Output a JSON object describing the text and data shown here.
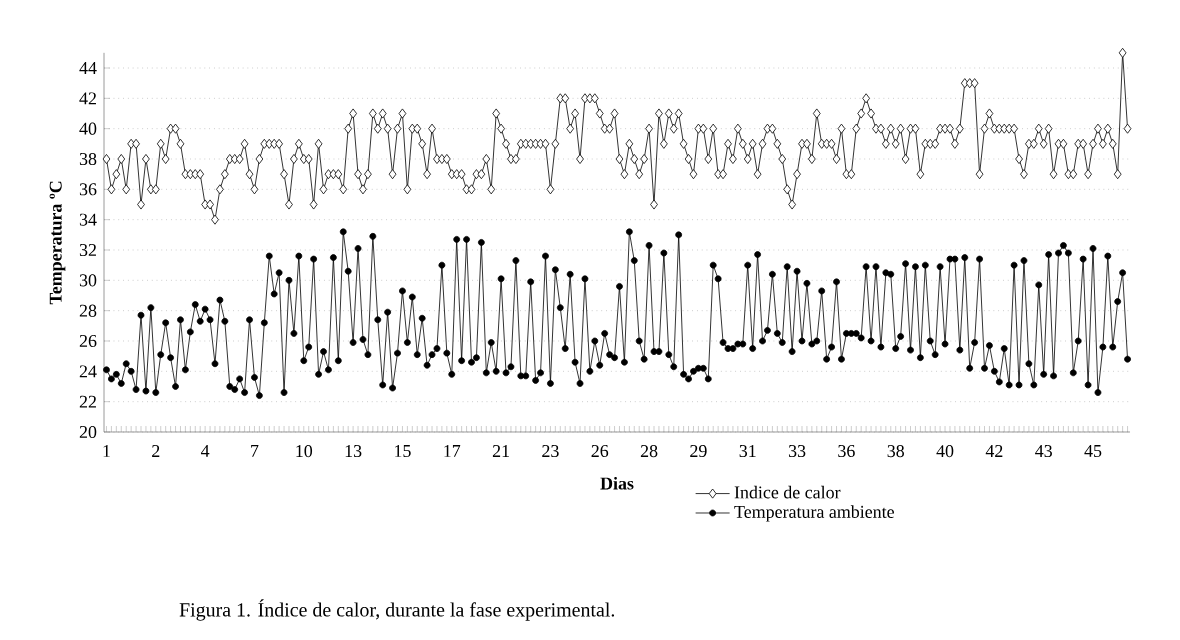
{
  "chart_data": {
    "type": "line",
    "xlabel": "Dias",
    "ylabel": "Temperatura ºC",
    "annotations": [
      "Figura 1. Índice de calor, durante la fase experimental."
    ],
    "categories": [
      "1",
      null,
      null,
      null,
      null,
      null,
      null,
      null,
      null,
      null,
      "2",
      null,
      null,
      null,
      null,
      null,
      null,
      null,
      null,
      null,
      "4",
      null,
      null,
      null,
      null,
      null,
      null,
      null,
      null,
      null,
      "7",
      null,
      null,
      null,
      null,
      null,
      null,
      null,
      null,
      null,
      "10",
      null,
      null,
      null,
      null,
      null,
      null,
      null,
      null,
      null,
      "13",
      null,
      null,
      null,
      null,
      null,
      null,
      null,
      null,
      null,
      "15",
      null,
      null,
      null,
      null,
      null,
      null,
      null,
      null,
      null,
      "17",
      null,
      null,
      null,
      null,
      null,
      null,
      null,
      null,
      null,
      "21",
      null,
      null,
      null,
      null,
      null,
      null,
      null,
      null,
      null,
      "23",
      null,
      null,
      null,
      null,
      null,
      null,
      null,
      null,
      null,
      "26",
      null,
      null,
      null,
      null,
      null,
      null,
      null,
      null,
      null,
      "28",
      null,
      null,
      null,
      null,
      null,
      null,
      null,
      null,
      null,
      "29",
      null,
      null,
      null,
      null,
      null,
      null,
      null,
      null,
      null,
      "31",
      null,
      null,
      null,
      null,
      null,
      null,
      null,
      null,
      null,
      "33",
      null,
      null,
      null,
      null,
      null,
      null,
      null,
      null,
      null,
      "36",
      null,
      null,
      null,
      null,
      null,
      null,
      null,
      null,
      null,
      "38",
      null,
      null,
      null,
      null,
      null,
      null,
      null,
      null,
      null,
      "40",
      null,
      null,
      null,
      null,
      null,
      null,
      null,
      null,
      null,
      "42",
      null,
      null,
      null,
      null,
      null,
      null,
      null,
      null,
      null,
      "43",
      null,
      null,
      null,
      null,
      null,
      null,
      null,
      null,
      null,
      "45",
      null,
      null,
      null,
      null,
      null,
      null,
      null
    ],
    "series": [
      {
        "name": "Indice de calor",
        "color": "#000000",
        "marker": "diamond",
        "values": [
          38,
          36,
          37,
          38,
          36,
          39,
          39,
          35,
          38,
          36,
          36,
          39,
          38,
          40,
          40,
          39,
          37,
          37,
          37,
          37,
          35,
          35,
          34,
          36,
          37,
          38,
          38,
          38,
          39,
          37,
          36,
          38,
          39,
          39,
          39,
          39,
          37,
          35,
          38,
          39,
          38,
          38,
          35,
          39,
          36,
          37,
          37,
          37,
          36,
          40,
          41,
          37,
          36,
          37,
          41,
          40,
          41,
          40,
          37,
          40,
          41,
          36,
          40,
          40,
          39,
          37,
          40,
          38,
          38,
          38,
          37,
          37,
          37,
          36,
          36,
          37,
          37,
          38,
          36,
          41,
          40,
          39,
          38,
          38,
          39,
          39,
          39,
          39,
          39,
          39,
          36,
          39,
          42,
          42,
          40,
          41,
          38,
          42,
          42,
          42,
          41,
          40,
          40,
          41,
          38,
          37,
          39,
          38,
          37,
          38,
          40,
          35,
          41,
          39,
          41,
          40,
          41,
          39,
          38,
          37,
          40,
          40,
          38,
          40,
          37,
          37,
          39,
          38,
          40,
          39,
          38,
          39,
          37,
          39,
          40,
          40,
          39,
          38,
          36,
          35,
          37,
          39,
          39,
          38,
          41,
          39,
          39,
          39,
          38,
          40,
          37,
          37,
          40,
          41,
          42,
          41,
          40,
          40,
          39,
          40,
          39,
          40,
          38,
          40,
          40,
          37,
          39,
          39,
          39,
          40,
          40,
          40,
          39,
          40,
          43,
          43,
          43,
          37,
          40,
          41,
          40,
          40,
          40,
          40,
          40,
          38,
          37,
          39,
          39,
          40,
          39,
          40,
          37,
          39,
          39,
          37,
          37,
          39,
          39,
          37,
          39,
          40,
          39,
          40,
          39,
          37,
          45,
          40
        ]
      },
      {
        "name": "Temperatura ambiente",
        "color": "#000000",
        "marker": "circle",
        "values": [
          24.1,
          23.5,
          23.8,
          23.2,
          24.5,
          24.0,
          22.8,
          27.7,
          22.7,
          28.2,
          22.6,
          25.1,
          27.2,
          24.9,
          23.0,
          27.4,
          24.1,
          26.6,
          28.4,
          27.3,
          28.1,
          27.4,
          24.5,
          28.7,
          27.3,
          23.0,
          22.8,
          23.5,
          22.6,
          27.4,
          23.6,
          22.4,
          27.2,
          31.6,
          29.1,
          30.5,
          22.6,
          30.0,
          26.5,
          31.6,
          24.7,
          25.6,
          31.4,
          23.8,
          25.3,
          24.1,
          31.5,
          24.7,
          33.2,
          30.6,
          25.9,
          32.1,
          26.1,
          25.1,
          32.9,
          27.4,
          23.1,
          27.9,
          22.9,
          25.2,
          29.3,
          25.9,
          28.9,
          25.1,
          27.5,
          24.4,
          25.1,
          25.5,
          31.0,
          25.2,
          23.8,
          32.7,
          24.7,
          32.7,
          24.6,
          24.9,
          32.5,
          23.9,
          25.9,
          24.0,
          30.1,
          23.9,
          24.3,
          31.3,
          23.7,
          23.7,
          29.9,
          23.4,
          23.9,
          31.6,
          23.2,
          30.7,
          28.2,
          25.5,
          30.4,
          24.6,
          23.2,
          30.1,
          24.0,
          26.0,
          24.4,
          26.5,
          25.1,
          24.9,
          29.6,
          24.6,
          33.2,
          31.3,
          26.0,
          24.8,
          32.3,
          25.3,
          25.3,
          31.8,
          25.1,
          24.3,
          33.0,
          23.8,
          23.5,
          24.0,
          24.2,
          24.2,
          23.5,
          31.0,
          30.1,
          25.9,
          25.5,
          25.5,
          25.8,
          25.8,
          31.0,
          25.5,
          31.7,
          26.0,
          26.7,
          30.4,
          26.5,
          25.9,
          30.9,
          25.3,
          30.6,
          26.0,
          29.8,
          25.8,
          26.0,
          29.3,
          24.8,
          25.6,
          29.9,
          24.8,
          26.5,
          26.5,
          26.5,
          26.2,
          30.9,
          26.0,
          30.9,
          25.6,
          30.5,
          30.4,
          25.5,
          26.3,
          31.1,
          25.4,
          30.9,
          24.9,
          31.0,
          26.0,
          25.1,
          30.9,
          25.8,
          31.4,
          31.4,
          25.4,
          31.5,
          24.2,
          25.9,
          31.4,
          24.2,
          25.7,
          24.0,
          23.3,
          25.5,
          23.1,
          31.0,
          23.1,
          31.3,
          24.5,
          23.1,
          29.7,
          23.8,
          31.7,
          23.7,
          31.8,
          32.3,
          31.8,
          23.9,
          26.0,
          31.4,
          23.1,
          32.1,
          22.6,
          25.6,
          31.6,
          25.6,
          28.6,
          30.5,
          24.8
        ]
      }
    ],
    "ylim": [
      20,
      45
    ],
    "yticks": [
      20,
      22,
      24,
      26,
      28,
      30,
      32,
      34,
      36,
      38,
      40,
      42,
      44
    ],
    "grid": "y",
    "legend": "bottom right",
    "line_style": "solid"
  }
}
